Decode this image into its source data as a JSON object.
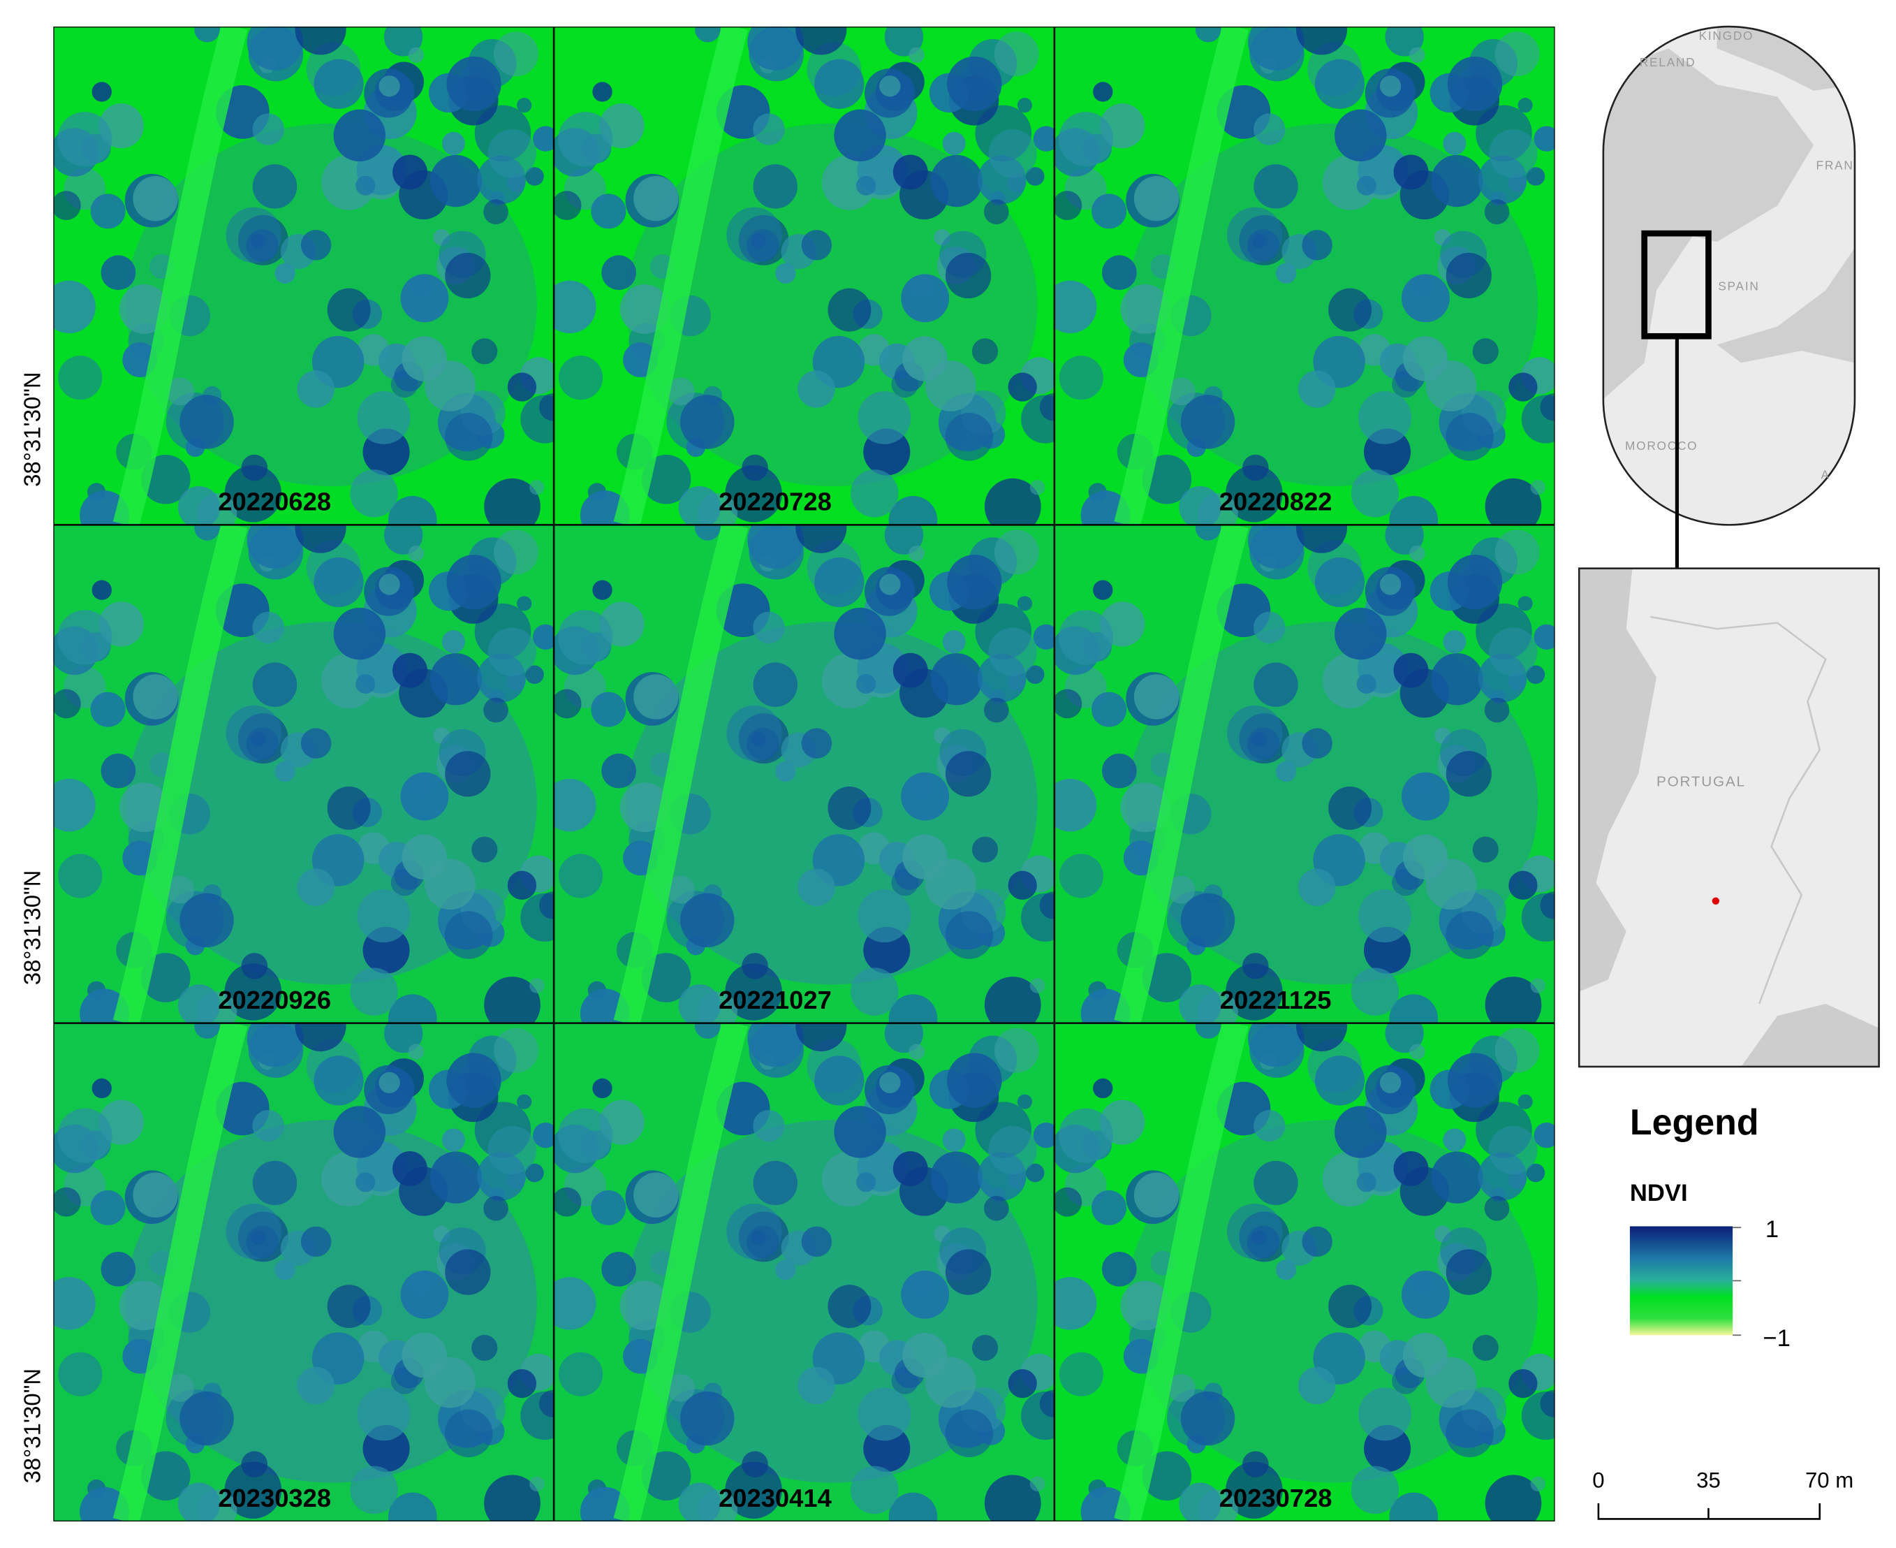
{
  "panels": [
    {
      "date": "20220628"
    },
    {
      "date": "20220728"
    },
    {
      "date": "20220822"
    },
    {
      "date": "20220926"
    },
    {
      "date": "20221027"
    },
    {
      "date": "20221125"
    },
    {
      "date": "20230328"
    },
    {
      "date": "20230414"
    },
    {
      "date": "20230728"
    }
  ],
  "latitude_labels": [
    "38°31'30\"N",
    "38°31'30\"N",
    "38°31'30\"N"
  ],
  "locator_map": {
    "labels": [
      "KINGDO",
      "RELAND",
      "FRAN",
      "SPAIN",
      "MOROCCO",
      "A"
    ]
  },
  "detail_map": {
    "label": "PORTUGAL"
  },
  "legend": {
    "title": "Legend",
    "layer": "NDVI",
    "max_label": "1",
    "min_label": "−1"
  },
  "scale_bar": {
    "labels": [
      "0",
      "35",
      "70 m"
    ]
  }
}
